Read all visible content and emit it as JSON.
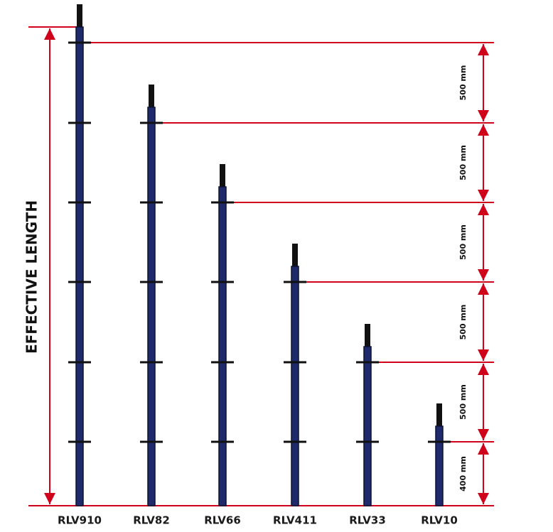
{
  "axis_label": "EFFECTIVE LENGTH",
  "dimensions": [
    "500 mm",
    "500 mm",
    "500 mm",
    "500 mm",
    "500 mm",
    "400 mm"
  ],
  "standards": [
    "RLV910",
    "RLV82",
    "RLV66",
    "RLV411",
    "RLV33",
    "RLV10"
  ]
}
